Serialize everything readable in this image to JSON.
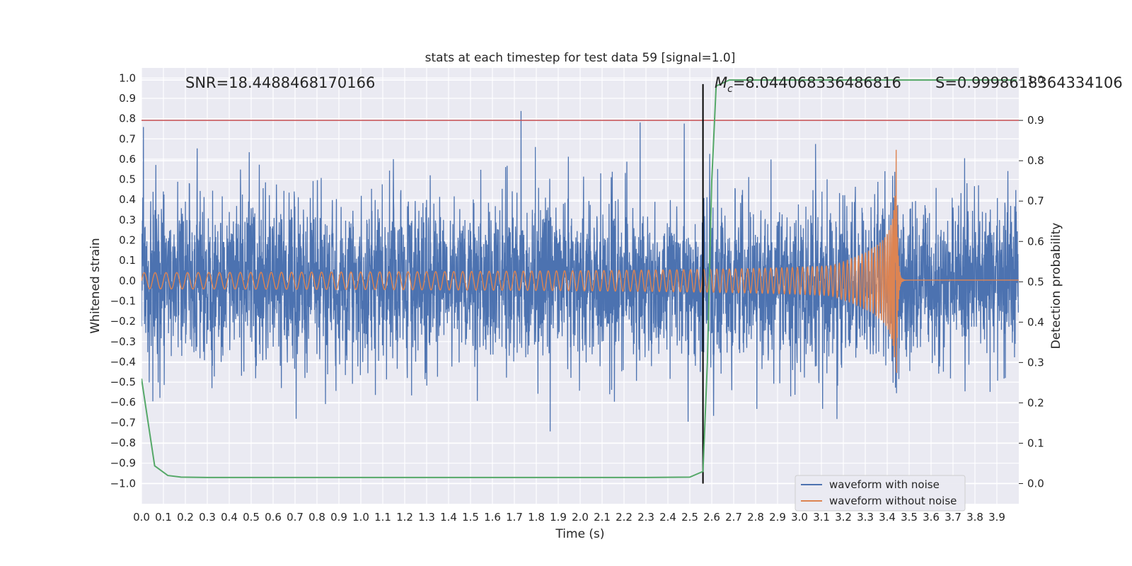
{
  "chart_data": {
    "type": "line",
    "title": "stats at each timestep for test data 59 [signal=1.0]",
    "xlabel": "Time (s)",
    "ylabel": "Whitened strain",
    "y2label": "Detection probability",
    "xlim": [
      0.0,
      4.0
    ],
    "ylim": [
      -1.1,
      1.05
    ],
    "y2lim": [
      -0.05,
      1.03
    ],
    "grid": true,
    "legend_position": "lower-right",
    "x_ticks": [
      "0.0",
      "0.1",
      "0.2",
      "0.3",
      "0.4",
      "0.5",
      "0.6",
      "0.7",
      "0.8",
      "0.9",
      "1.0",
      "1.1",
      "1.2",
      "1.3",
      "1.4",
      "1.5",
      "1.6",
      "1.7",
      "1.8",
      "1.9",
      "2.0",
      "2.1",
      "2.2",
      "2.3",
      "2.4",
      "2.5",
      "2.6",
      "2.7",
      "2.8",
      "2.9",
      "3.0",
      "3.1",
      "3.2",
      "3.3",
      "3.4",
      "3.5",
      "3.6",
      "3.7",
      "3.8",
      "3.9"
    ],
    "y_ticks": [
      "1.0",
      "0.9",
      "0.8",
      "0.7",
      "0.6",
      "0.5",
      "0.4",
      "0.3",
      "0.2",
      "0.1",
      "0.0",
      "−0.1",
      "−0.2",
      "−0.3",
      "−0.4",
      "−0.5",
      "−0.6",
      "−0.7",
      "−0.8",
      "−0.9",
      "−1.0"
    ],
    "y2_ticks": [
      "1.0",
      "0.9",
      "0.8",
      "0.7",
      "0.6",
      "0.5",
      "0.4",
      "0.3",
      "0.2",
      "0.1",
      "0.0"
    ],
    "annotations": {
      "snr": "SNR=18.4488468170166",
      "mc_symbol": "M",
      "mc_sub": "c",
      "mc_value": "=8.044068336486816",
      "s": "S=0.9998618364334106"
    },
    "threshold": {
      "y2": 0.9,
      "color": "#c44e52"
    },
    "event_time": 2.56,
    "series": [
      {
        "name": "waveform with noise",
        "axis": "left",
        "color": "#4c72b0",
        "samples": 4096,
        "noise_std": 0.25
      },
      {
        "name": "waveform without noise",
        "axis": "left",
        "color": "#dd8452",
        "chirp": {
          "start_frequency_hz": 20,
          "merger_time": 3.44,
          "start_amplitude": 0.04,
          "peak_amplitude": 0.75
        }
      },
      {
        "name": "",
        "axis": "right",
        "color": "#55a868",
        "x": [
          0.0,
          0.06,
          0.12,
          0.18,
          0.3,
          0.5,
          1.0,
          1.5,
          2.0,
          2.3,
          2.5,
          2.56,
          2.58,
          2.6,
          2.62,
          2.68,
          2.8,
          3.2,
          3.6,
          3.99
        ],
        "values": [
          0.26,
          0.044,
          0.02,
          0.016,
          0.015,
          0.015,
          0.015,
          0.015,
          0.015,
          0.015,
          0.016,
          0.03,
          0.3,
          0.75,
          0.985,
          1.0,
          1.0,
          1.0,
          1.0,
          1.0
        ]
      }
    ]
  }
}
